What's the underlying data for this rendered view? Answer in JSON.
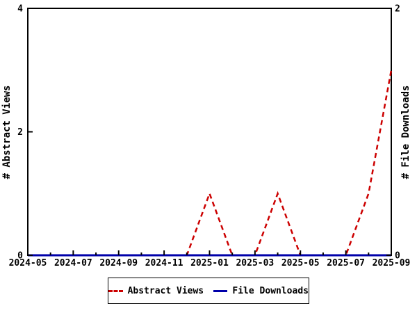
{
  "page": {
    "background": "#ffffff",
    "text_color": "#000000"
  },
  "chart_data": {
    "type": "line",
    "title": "",
    "grid": false,
    "x": [
      "2024-05",
      "2024-06",
      "2024-07",
      "2024-08",
      "2024-09",
      "2024-10",
      "2024-11",
      "2024-12",
      "2025-01",
      "2025-02",
      "2025-03",
      "2025-04",
      "2025-05",
      "2025-06",
      "2025-07",
      "2025-08",
      "2025-09"
    ],
    "x_axis": {
      "tick_labels": [
        "2024-05",
        "2024-07",
        "2024-09",
        "2024-11",
        "2025-01",
        "2025-03",
        "2025-05",
        "2025-07",
        "2025-09"
      ]
    },
    "left_axis": {
      "label": "# Abstract Views",
      "range": [
        0,
        4
      ],
      "ticks": [
        0,
        2,
        4
      ]
    },
    "right_axis": {
      "label": "# File Downloads",
      "range": [
        0,
        2
      ],
      "ticks": [
        0,
        2
      ]
    },
    "series": [
      {
        "name": "Abstract Views",
        "axis": "left",
        "color": "#cc0000",
        "style": "dashed",
        "values": [
          0,
          0,
          0,
          0,
          0,
          0,
          0,
          0,
          1,
          0,
          0,
          1,
          0,
          0,
          0,
          1,
          3
        ]
      },
      {
        "name": "File Downloads",
        "axis": "right",
        "color": "#0000aa",
        "style": "solid",
        "values": [
          0,
          0,
          0,
          0,
          0,
          0,
          0,
          0,
          0,
          0,
          0,
          0,
          0,
          0,
          0,
          0,
          0
        ]
      }
    ],
    "legend": {
      "position": "bottom-center",
      "entries": [
        "Abstract Views",
        "File Downloads"
      ]
    }
  }
}
